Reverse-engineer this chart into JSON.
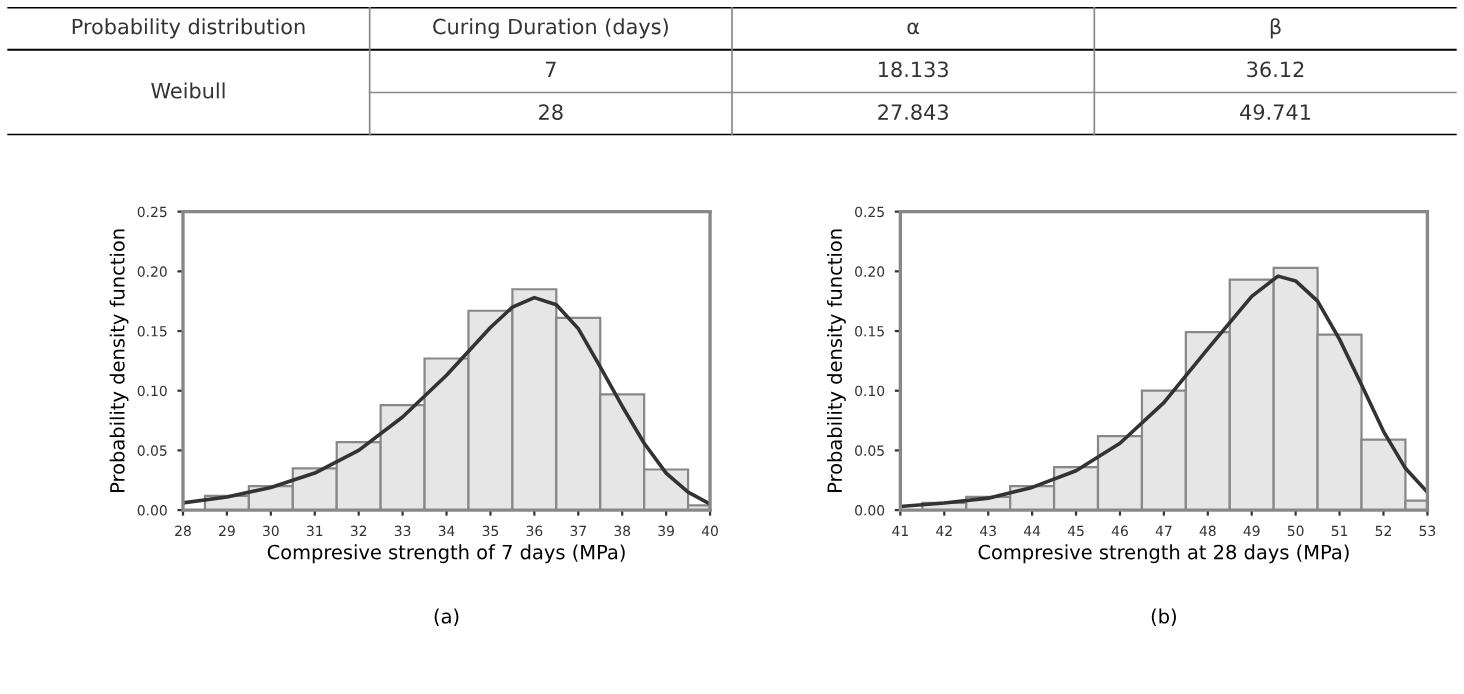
{
  "chart_data": [
    {
      "type": "other",
      "annotations": [
        "Probability distribution",
        "Curing Duration (days)",
        "α",
        "β",
        "Weibull",
        "7",
        "18.133",
        "36.12",
        "28",
        "27.843",
        "49.741"
      ]
    },
    {
      "type": "histogram",
      "xlabel": "Compresive strength of 7 days (MPa)",
      "ylabel": "Probability density function",
      "annotations": [
        "(a)"
      ],
      "bins": [
        28.5,
        29.5,
        30.5,
        31.5,
        32.5,
        33.5,
        34.5,
        35.5,
        36.5,
        37.5,
        38.5,
        39.5,
        40
      ],
      "values": [
        0.012,
        0.02,
        0.035,
        0.057,
        0.088,
        0.127,
        0.167,
        0.185,
        0.161,
        0.097,
        0.034,
        0.004
      ],
      "color": "#e6e6e6",
      "series": [
        {
          "type": "line",
          "color": "#333333",
          "x": [
            28,
            29,
            30,
            31,
            32,
            33,
            34,
            35,
            35.5,
            36,
            36.5,
            37,
            37.5,
            38,
            38.5,
            39,
            39.5,
            40
          ],
          "values": [
            0.006,
            0.011,
            0.019,
            0.031,
            0.05,
            0.078,
            0.113,
            0.153,
            0.17,
            0.178,
            0.172,
            0.152,
            0.12,
            0.087,
            0.056,
            0.031,
            0.015,
            0.005
          ]
        }
      ],
      "xlim": [
        28,
        40
      ],
      "xticks": [
        28,
        29,
        30,
        31,
        32,
        33,
        34,
        35,
        36,
        37,
        38,
        39,
        40
      ],
      "ylim": [
        0,
        0.25
      ],
      "yticks": [
        {
          "value": 0,
          "label": "0.00"
        },
        {
          "value": 0.05,
          "label": "0.05"
        },
        {
          "value": 0.1,
          "label": "0.10"
        },
        {
          "value": 0.15,
          "label": "0.15"
        },
        {
          "value": 0.2,
          "label": "0.20"
        },
        {
          "value": 0.25,
          "label": "0.25"
        }
      ],
      "grid": false,
      "legend": false,
      "marker": "none",
      "line_style": "solid"
    },
    {
      "type": "histogram",
      "xlabel": "Compresive strength at 28 days (MPa)",
      "ylabel": "Probability density function",
      "annotations": [
        "(b)"
      ],
      "bins": [
        41.5,
        42.5,
        43.5,
        44.5,
        45.5,
        46.5,
        47.5,
        48.5,
        49.5,
        50.5,
        51.5,
        52.5,
        53
      ],
      "values": [
        0.006,
        0.011,
        0.02,
        0.036,
        0.062,
        0.1,
        0.149,
        0.193,
        0.203,
        0.147,
        0.059,
        0.008
      ],
      "color": "#e6e6e6",
      "series": [
        {
          "type": "line",
          "color": "#333333",
          "x": [
            41,
            42,
            43,
            44,
            45,
            46,
            47,
            48,
            49,
            49.6,
            50,
            50.5,
            51,
            51.5,
            52,
            52.5,
            53
          ],
          "values": [
            0.003,
            0.006,
            0.01,
            0.019,
            0.033,
            0.056,
            0.09,
            0.135,
            0.179,
            0.196,
            0.192,
            0.175,
            0.143,
            0.105,
            0.066,
            0.035,
            0.015
          ]
        }
      ],
      "xlim": [
        41,
        53
      ],
      "xticks": [
        41,
        42,
        43,
        44,
        45,
        46,
        47,
        48,
        49,
        50,
        51,
        52,
        53
      ],
      "ylim": [
        0,
        0.25
      ],
      "yticks": [
        {
          "value": 0,
          "label": "0.00"
        },
        {
          "value": 0.05,
          "label": "0.05"
        },
        {
          "value": 0.1,
          "label": "0.10"
        },
        {
          "value": 0.15,
          "label": "0.15"
        },
        {
          "value": 0.2,
          "label": "0.20"
        },
        {
          "value": 0.25,
          "label": "0.25"
        }
      ],
      "grid": false,
      "legend": false,
      "marker": "none",
      "line_style": "solid"
    }
  ]
}
